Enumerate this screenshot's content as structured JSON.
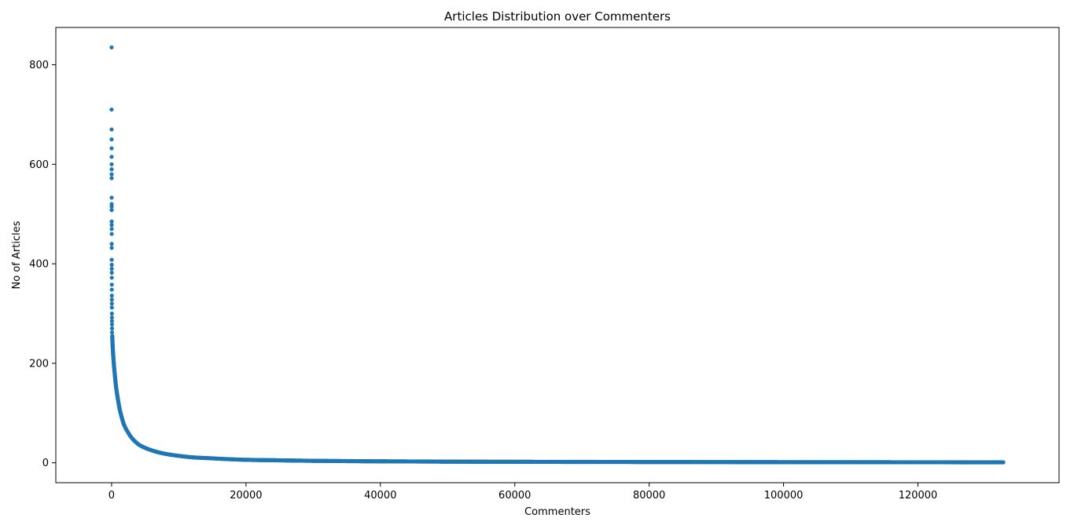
{
  "chart_data": {
    "type": "scatter",
    "title": "Articles Distribution over Commenters",
    "xlabel": "Commenters",
    "ylabel": "No of Articles",
    "xlim": [
      -8300,
      141000
    ],
    "ylim": [
      -40,
      875
    ],
    "x_ticks": [
      0,
      20000,
      40000,
      60000,
      80000,
      100000,
      120000
    ],
    "x_tick_labels": [
      "0",
      "20000",
      "40000",
      "60000",
      "80000",
      "100000",
      "120000"
    ],
    "y_ticks": [
      0,
      200,
      400,
      600,
      800
    ],
    "y_tick_labels": [
      "0",
      "200",
      "400",
      "600",
      "800"
    ],
    "grid": false,
    "marker_color": "#1f77b4",
    "series": [
      {
        "curve_model": "power_law",
        "x_count": 132700,
        "x_max": 132700,
        "outliers": [
          [
            0,
            835
          ],
          [
            1,
            710
          ],
          [
            2,
            670
          ],
          [
            3,
            650
          ],
          [
            4,
            632
          ],
          [
            5,
            615
          ],
          [
            6,
            600
          ],
          [
            7,
            590
          ],
          [
            8,
            580
          ],
          [
            9,
            572
          ],
          [
            10,
            533
          ],
          [
            11,
            520
          ],
          [
            12,
            515
          ],
          [
            13,
            508
          ],
          [
            14,
            485
          ],
          [
            15,
            478
          ],
          [
            16,
            470
          ],
          [
            17,
            460
          ],
          [
            18,
            440
          ],
          [
            19,
            432
          ],
          [
            20,
            408
          ],
          [
            22,
            398
          ],
          [
            24,
            390
          ],
          [
            26,
            382
          ],
          [
            28,
            372
          ],
          [
            30,
            358
          ],
          [
            32,
            348
          ],
          [
            34,
            336
          ],
          [
            36,
            328
          ],
          [
            38,
            320
          ],
          [
            40,
            312
          ],
          [
            45,
            300
          ],
          [
            50,
            292
          ],
          [
            55,
            285
          ],
          [
            60,
            278
          ],
          [
            65,
            270
          ],
          [
            70,
            262
          ]
        ],
        "curve_points": [
          [
            100,
            255
          ],
          [
            200,
            225
          ],
          [
            300,
            205
          ],
          [
            400,
            188
          ],
          [
            500,
            175
          ],
          [
            600,
            160
          ],
          [
            800,
            140
          ],
          [
            1000,
            123
          ],
          [
            1200,
            108
          ],
          [
            1500,
            92
          ],
          [
            1800,
            78
          ],
          [
            2000,
            72
          ],
          [
            2500,
            60
          ],
          [
            3000,
            50
          ],
          [
            3500,
            43
          ],
          [
            4000,
            37
          ],
          [
            5000,
            30
          ],
          [
            6000,
            25
          ],
          [
            7000,
            21
          ],
          [
            8000,
            18
          ],
          [
            10000,
            14
          ],
          [
            12000,
            11
          ],
          [
            15000,
            9
          ],
          [
            20000,
            6
          ],
          [
            25000,
            5
          ],
          [
            30000,
            4
          ],
          [
            40000,
            3
          ],
          [
            60000,
            2
          ],
          [
            90000,
            1.5
          ],
          [
            132700,
            1
          ]
        ]
      }
    ]
  }
}
